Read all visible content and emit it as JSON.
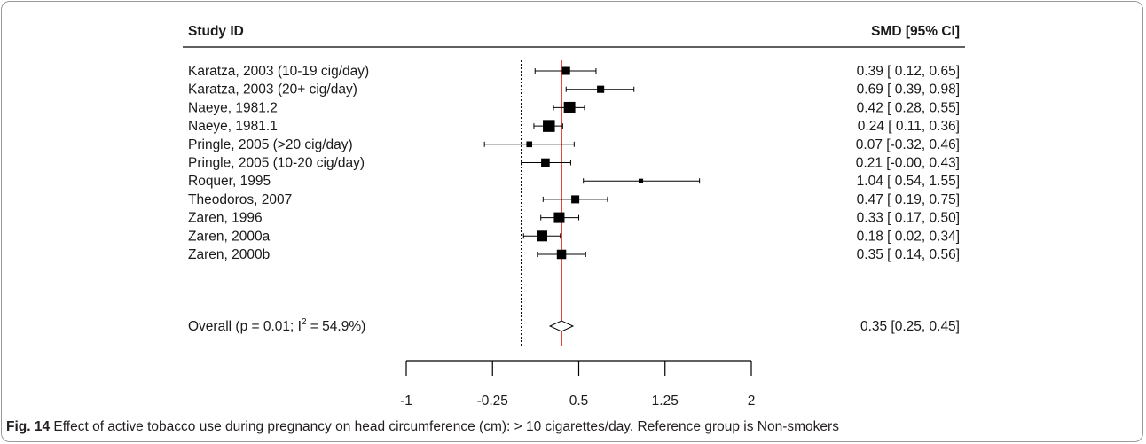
{
  "chart_data": {
    "type": "forest",
    "header": {
      "left": "Study ID",
      "right": "SMD [95% CI]"
    },
    "studies": [
      {
        "label": "Karatza, 2003 (10-19 cig/day)",
        "est": 0.39,
        "lo": 0.12,
        "hi": 0.65,
        "ci_text": "0.39 [ 0.12, 0.65]",
        "weight": 1.0
      },
      {
        "label": "Karatza, 2003 (20+ cig/day)",
        "est": 0.69,
        "lo": 0.39,
        "hi": 0.98,
        "ci_text": "0.69 [ 0.39, 0.98]",
        "weight": 0.85
      },
      {
        "label": "Naeye, 1981.2",
        "est": 0.42,
        "lo": 0.28,
        "hi": 0.55,
        "ci_text": "0.42 [ 0.28, 0.55]",
        "weight": 1.65
      },
      {
        "label": "Naeye, 1981.1",
        "est": 0.24,
        "lo": 0.11,
        "hi": 0.36,
        "ci_text": "0.24 [ 0.11, 0.36]",
        "weight": 1.75
      },
      {
        "label": "Pringle, 2005 (>20 cig/day)",
        "est": 0.07,
        "lo": -0.32,
        "hi": 0.46,
        "ci_text": "0.07 [-0.32, 0.46]",
        "weight": 0.6
      },
      {
        "label": "Pringle, 2005 (10-20 cig/day)",
        "est": 0.21,
        "lo": -0.0,
        "hi": 0.43,
        "ci_text": "0.21 [-0.00, 0.43]",
        "weight": 1.1
      },
      {
        "label": "Roquer, 1995",
        "est": 1.04,
        "lo": 0.54,
        "hi": 1.55,
        "ci_text": "1.04 [ 0.54, 1.55]",
        "weight": 0.35
      },
      {
        "label": "Theodoros, 2007",
        "est": 0.47,
        "lo": 0.19,
        "hi": 0.75,
        "ci_text": "0.47 [ 0.19, 0.75]",
        "weight": 1.0
      },
      {
        "label": "Zaren, 1996",
        "est": 0.33,
        "lo": 0.17,
        "hi": 0.5,
        "ci_text": "0.33 [ 0.17, 0.50]",
        "weight": 1.5
      },
      {
        "label": "Zaren, 2000a",
        "est": 0.18,
        "lo": 0.02,
        "hi": 0.34,
        "ci_text": "0.18 [ 0.02, 0.34]",
        "weight": 1.5
      },
      {
        "label": "Zaren, 2000b",
        "est": 0.35,
        "lo": 0.14,
        "hi": 0.56,
        "ci_text": "0.35 [ 0.14, 0.56]",
        "weight": 1.25
      }
    ],
    "overall": {
      "label_prefix": "Overall (p = 0.01; I",
      "label_sup": "2",
      "label_suffix": " = 54.9%)",
      "est": 0.35,
      "lo": 0.25,
      "hi": 0.45,
      "ci_text": "0.35 [0.25, 0.45]"
    },
    "null_line_x": 0,
    "x_ticks": [
      -1,
      -0.25,
      0.5,
      1.25,
      2
    ],
    "x_tick_labels": [
      "-1",
      "-0.25",
      "0.5",
      "1.25",
      "2"
    ],
    "xlim": [
      -1,
      2
    ],
    "colors": {
      "overall_line": "#e8221d",
      "text": "#1a1a1a",
      "marks": "#000000"
    }
  },
  "caption": {
    "label": "Fig. 14",
    "text": "Effect of active tobacco use during pregnancy on head circumference (cm): > 10 cigarettes/day. Reference group is Non-smokers"
  }
}
